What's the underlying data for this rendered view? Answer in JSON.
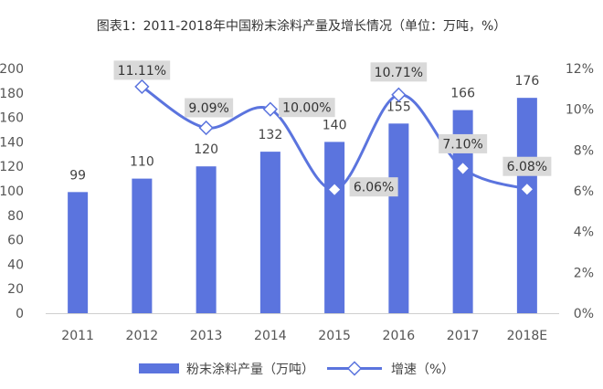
{
  "chart_data": {
    "type": "bar",
    "title": "图表1：2011-2018年中国粉末涂料产量及增长情况（单位：万吨，%）",
    "categories": [
      "2011",
      "2012",
      "2013",
      "2014",
      "2015",
      "2016",
      "2017",
      "2018E"
    ],
    "series": [
      {
        "name": "粉末涂料产量（万吨）",
        "type": "bar",
        "axis": "left",
        "values": [
          99,
          110,
          120,
          132,
          140,
          155,
          166,
          176
        ],
        "labels": [
          "99",
          "110",
          "120",
          "132",
          "140",
          "155",
          "166",
          "176"
        ],
        "color": "#5b74de"
      },
      {
        "name": "增速（%）",
        "type": "line",
        "axis": "right",
        "smooth": true,
        "values": [
          null,
          11.11,
          9.09,
          10.0,
          6.06,
          10.71,
          7.1,
          6.08
        ],
        "labels": [
          null,
          "11.11%",
          "9.09%",
          "10.00%",
          "6.06%",
          "10.71%",
          "7.10%",
          "6.08%"
        ],
        "color": "#5b74de"
      }
    ],
    "y_left": {
      "min": 0,
      "max": 200,
      "step": 20,
      "ticks": [
        "0",
        "20",
        "40",
        "60",
        "80",
        "100",
        "120",
        "140",
        "160",
        "180",
        "200"
      ]
    },
    "y_right": {
      "min": 0,
      "max": 12,
      "step": 2,
      "ticks": [
        "0%",
        "2%",
        "4%",
        "6%",
        "8%",
        "10%",
        "12%"
      ]
    },
    "grid": false,
    "legend_position": "bottom",
    "label_box_color": "#d9d9d9"
  }
}
